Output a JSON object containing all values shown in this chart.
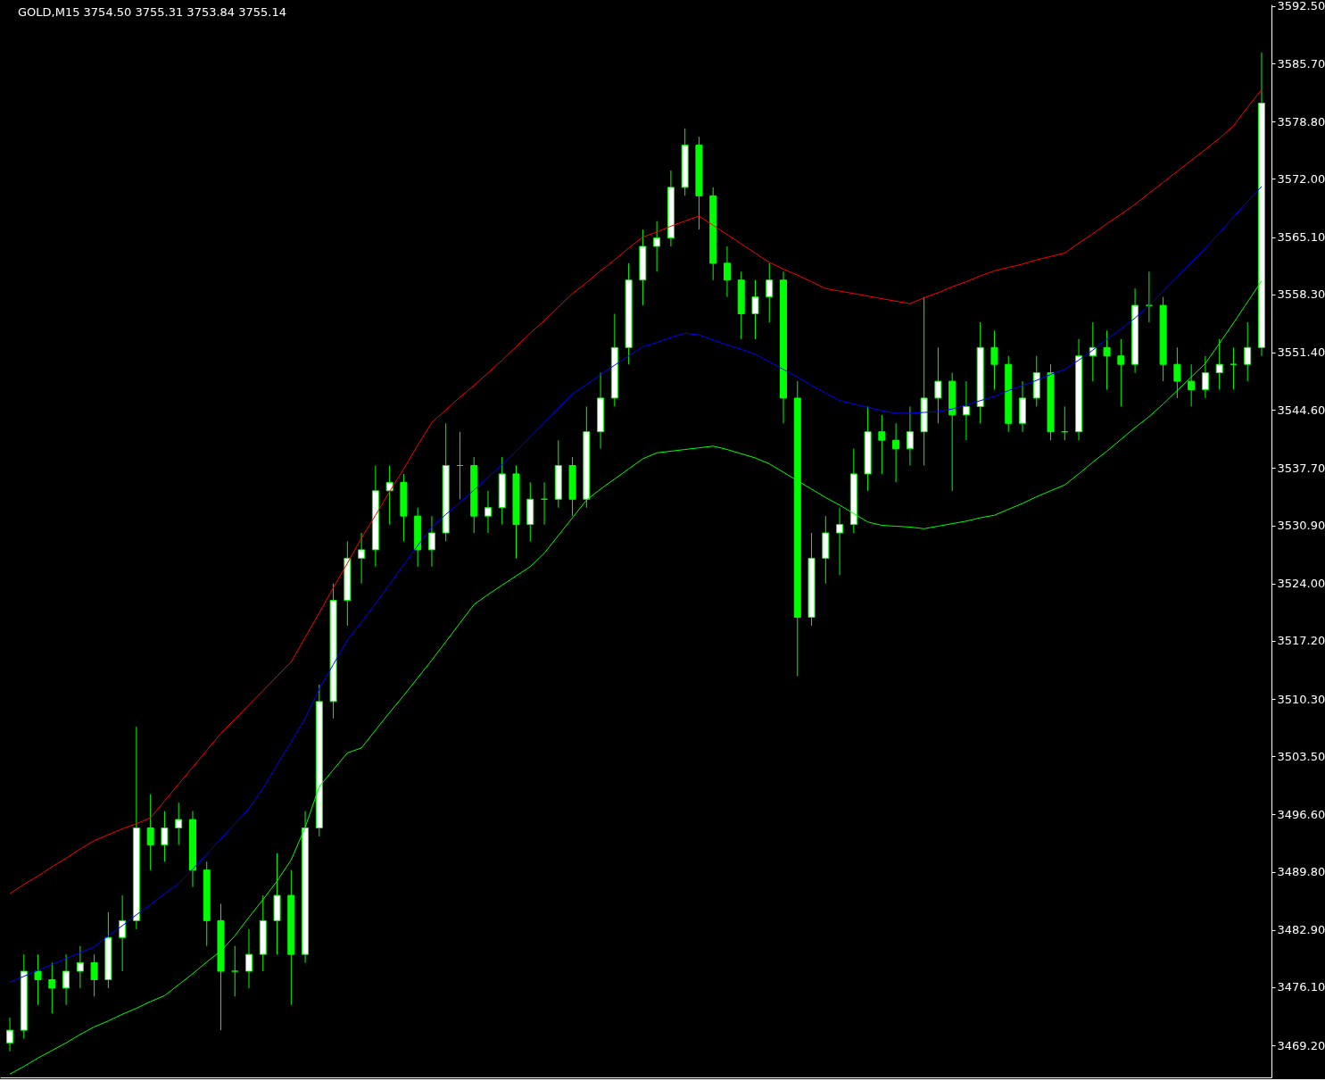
{
  "chart_data": {
    "type": "candlestick",
    "title": "GOLD,M15  3754.50 3755.31 3753.84 3755.14",
    "color": "#00ff00",
    "tick_labels": "y",
    "categories": [
      null,
      null,
      null,
      null,
      null,
      null,
      null,
      null,
      null,
      null,
      null,
      null,
      null,
      null,
      null,
      null,
      null,
      null,
      null,
      null,
      null,
      null,
      null,
      null,
      null,
      null,
      null,
      null,
      null,
      null,
      null,
      null,
      null,
      null,
      null,
      null,
      null,
      null,
      null,
      null,
      null,
      null,
      null,
      null,
      null,
      null,
      null,
      null,
      null,
      null,
      null,
      null,
      null,
      null,
      null,
      null,
      null,
      null,
      null,
      null,
      null,
      null,
      null,
      null,
      null,
      null,
      null,
      null,
      null,
      null,
      null,
      null,
      null,
      null,
      null,
      null,
      null,
      null,
      null,
      null,
      null,
      null,
      null,
      null,
      null,
      null,
      null,
      null,
      null,
      null
    ],
    "ohlc": [
      [
        3469.5,
        3472.5,
        3468.5,
        3471
      ],
      [
        3471,
        3480,
        3470,
        3478
      ],
      [
        3478,
        3480,
        3474,
        3477
      ],
      [
        3477,
        3479,
        3473,
        3476
      ],
      [
        3476,
        3480,
        3474,
        3478
      ],
      [
        3478,
        3481,
        3476,
        3479
      ],
      [
        3479,
        3480,
        3475,
        3477
      ],
      [
        3477,
        3485,
        3476,
        3482
      ],
      [
        3482,
        3487,
        3478,
        3484
      ],
      [
        3484,
        3507,
        3483,
        3495
      ],
      [
        3495,
        3499,
        3490,
        3493
      ],
      [
        3493,
        3497,
        3491,
        3495
      ],
      [
        3495,
        3498,
        3493,
        3496
      ],
      [
        3496,
        3497,
        3488,
        3490
      ],
      [
        3490,
        3491,
        3481,
        3484
      ],
      [
        3484,
        3486,
        3471,
        3478
      ],
      [
        3478,
        3481,
        3475,
        3478
      ],
      [
        3478,
        3483,
        3476,
        3480
      ],
      [
        3480,
        3487,
        3478,
        3484
      ],
      [
        3484,
        3492,
        3480,
        3487
      ],
      [
        3487,
        3490,
        3474,
        3480
      ],
      [
        3480,
        3497,
        3479,
        3495
      ],
      [
        3495,
        3512,
        3494,
        3510
      ],
      [
        3510,
        3524,
        3508,
        3522
      ],
      [
        3522,
        3529,
        3519,
        3527
      ],
      [
        3527,
        3530,
        3524,
        3528
      ],
      [
        3528,
        3538,
        3526,
        3535
      ],
      [
        3535,
        3538,
        3531,
        3536
      ],
      [
        3536,
        3537,
        3529,
        3532
      ],
      [
        3532,
        3533,
        3526,
        3528
      ],
      [
        3528,
        3532,
        3526,
        3530
      ],
      [
        3530,
        3543,
        3529,
        3538
      ],
      [
        3538,
        3542,
        3534,
        3538
      ],
      [
        3538,
        3539,
        3530,
        3532
      ],
      [
        3532,
        3535,
        3530,
        3533
      ],
      [
        3533,
        3539,
        3531,
        3537
      ],
      [
        3537,
        3538,
        3527,
        3531
      ],
      [
        3531,
        3536,
        3529,
        3534
      ],
      [
        3534,
        3536,
        3531,
        3534
      ],
      [
        3534,
        3541,
        3533,
        3538
      ],
      [
        3538,
        3539,
        3532,
        3534
      ],
      [
        3534,
        3545,
        3533,
        3542
      ],
      [
        3542,
        3549,
        3540,
        3546
      ],
      [
        3546,
        3556,
        3545,
        3552
      ],
      [
        3552,
        3562,
        3550,
        3560
      ],
      [
        3560,
        3566,
        3557,
        3564
      ],
      [
        3564,
        3567,
        3561,
        3565
      ],
      [
        3565,
        3573,
        3564,
        3571
      ],
      [
        3571,
        3578,
        3570,
        3576
      ],
      [
        3576,
        3577,
        3566,
        3570
      ],
      [
        3570,
        3571,
        3560,
        3562
      ],
      [
        3562,
        3564,
        3558,
        3560
      ],
      [
        3560,
        3561,
        3553,
        3556
      ],
      [
        3556,
        3560,
        3553,
        3558
      ],
      [
        3558,
        3562,
        3555,
        3560
      ],
      [
        3560,
        3561,
        3543,
        3546
      ],
      [
        3546,
        3548,
        3513,
        3520
      ],
      [
        3520,
        3530,
        3519,
        3527
      ],
      [
        3527,
        3532,
        3524,
        3530
      ],
      [
        3530,
        3533,
        3525,
        3531
      ],
      [
        3531,
        3540,
        3530,
        3537
      ],
      [
        3537,
        3545,
        3535,
        3542
      ],
      [
        3542,
        3544,
        3537,
        3541
      ],
      [
        3541,
        3543,
        3536,
        3540
      ],
      [
        3540,
        3545,
        3538,
        3542
      ],
      [
        3542,
        3558,
        3538,
        3546
      ],
      [
        3546,
        3552,
        3543,
        3548
      ],
      [
        3548,
        3549,
        3535,
        3544
      ],
      [
        3544,
        3548,
        3541,
        3545
      ],
      [
        3545,
        3555,
        3543,
        3552
      ],
      [
        3552,
        3554,
        3547,
        3550
      ],
      [
        3550,
        3551,
        3542,
        3543
      ],
      [
        3543,
        3548,
        3542,
        3546
      ],
      [
        3546,
        3551,
        3545,
        3549
      ],
      [
        3549,
        3550,
        3541,
        3542
      ],
      [
        3542,
        3545,
        3541,
        3542
      ],
      [
        3542,
        3553,
        3541,
        3551
      ],
      [
        3551,
        3555,
        3548,
        3552
      ],
      [
        3552,
        3554,
        3547,
        3551
      ],
      [
        3551,
        3553,
        3545,
        3550
      ],
      [
        3550,
        3559,
        3549,
        3557
      ],
      [
        3557,
        3561,
        3555,
        3557
      ],
      [
        3557,
        3558,
        3548,
        3550
      ],
      [
        3550,
        3552,
        3546,
        3548
      ],
      [
        3548,
        3550,
        3545,
        3547
      ],
      [
        3547,
        3551,
        3546,
        3549
      ],
      [
        3549,
        3553,
        3547,
        3550
      ],
      [
        3550,
        3552,
        3547,
        3550
      ],
      [
        3550,
        3555,
        3548,
        3552
      ],
      [
        3552,
        3587,
        3551,
        3581
      ]
    ],
    "series": [
      {
        "type": "line",
        "color": "#ff0000",
        "values": [
          3487.2,
          3488.3,
          3489.3,
          3490.4,
          3491.4,
          3492.5,
          3493.5,
          3494.2,
          3494.9,
          3495.5,
          3496.2,
          3498.2,
          3500.2,
          3502.2,
          3504.2,
          3506.2,
          3507.9,
          3509.6,
          3511.3,
          3513.0,
          3514.7,
          3517.6,
          3520.5,
          3523.5,
          3526.4,
          3529.4,
          3532.1,
          3534.9,
          3537.6,
          3540.4,
          3543.1,
          3544.6,
          3546.1,
          3547.5,
          3549.0,
          3550.5,
          3552.1,
          3553.7,
          3555.2,
          3556.8,
          3558.4,
          3559.7,
          3561.1,
          3562.4,
          3563.8,
          3565.1,
          3565.7,
          3566.4,
          3567.0,
          3567.6,
          3566.5,
          3565.4,
          3564.3,
          3563.2,
          3562.1,
          3561.3,
          3560.6,
          3559.8,
          3559.0,
          3558.7,
          3558.4,
          3558.1,
          3557.8,
          3557.5,
          3557.2,
          3557.9,
          3558.5,
          3559.2,
          3559.8,
          3560.5,
          3561.1,
          3561.5,
          3561.9,
          3562.4,
          3562.8,
          3563.2,
          3564.4,
          3565.5,
          3566.7,
          3567.8,
          3569.0,
          3570.3,
          3571.6,
          3572.9,
          3574.2,
          3575.5,
          3576.8,
          3578.3,
          3580.5,
          3582.6
        ]
      },
      {
        "type": "line",
        "color": "#0000ff",
        "values": [
          3476.7,
          3477.4,
          3478.1,
          3478.8,
          3479.5,
          3480.2,
          3480.9,
          3482.2,
          3483.4,
          3484.7,
          3485.9,
          3487.2,
          3488.4,
          3490.1,
          3491.9,
          3493.7,
          3495.5,
          3497.3,
          3499.7,
          3502.5,
          3505.2,
          3508.0,
          3511.5,
          3514.4,
          3517.3,
          3519.4,
          3521.6,
          3523.9,
          3526.2,
          3528.5,
          3530.7,
          3532.2,
          3533.6,
          3535.1,
          3536.6,
          3538.1,
          3539.7,
          3541.4,
          3543.1,
          3544.8,
          3546.5,
          3547.6,
          3548.8,
          3549.9,
          3551.0,
          3552.1,
          3552.6,
          3553.2,
          3553.7,
          3553.5,
          3552.9,
          3552.3,
          3551.8,
          3551.2,
          3550.3,
          3549.4,
          3548.5,
          3547.5,
          3546.6,
          3545.7,
          3545.3,
          3544.9,
          3544.5,
          3544.2,
          3544.2,
          3544.3,
          3544.4,
          3544.7,
          3545.2,
          3545.7,
          3546.2,
          3546.9,
          3547.5,
          3548.1,
          3548.8,
          3549.4,
          3550.5,
          3551.7,
          3553.0,
          3554.2,
          3555.5,
          3557.0,
          3558.7,
          3560.4,
          3562.1,
          3563.8,
          3565.6,
          3567.5,
          3569.3,
          3571.1
        ]
      },
      {
        "type": "line",
        "color": "#00ff00",
        "values": [
          3465.8,
          3466.7,
          3467.7,
          3468.6,
          3469.5,
          3470.5,
          3471.4,
          3472.1,
          3472.9,
          3473.6,
          3474.4,
          3475.1,
          3476.4,
          3477.7,
          3479.1,
          3480.4,
          3482.2,
          3484.4,
          3486.5,
          3488.7,
          3491.2,
          3495.1,
          3499.9,
          3501.9,
          3503.9,
          3504.5,
          3506.6,
          3508.7,
          3510.7,
          3512.8,
          3514.9,
          3517.1,
          3519.3,
          3521.5,
          3522.7,
          3523.8,
          3524.9,
          3526.0,
          3527.6,
          3529.7,
          3531.8,
          3533.9,
          3535.2,
          3536.4,
          3537.6,
          3538.8,
          3539.5,
          3539.7,
          3539.9,
          3540.1,
          3540.3,
          3539.9,
          3539.4,
          3538.9,
          3538.2,
          3537.2,
          3536.2,
          3535.2,
          3534.2,
          3533.3,
          3532.3,
          3531.3,
          3530.9,
          3530.8,
          3530.7,
          3530.5,
          3530.8,
          3531.1,
          3531.4,
          3531.8,
          3532.1,
          3532.8,
          3533.5,
          3534.3,
          3535.0,
          3535.7,
          3537.0,
          3538.4,
          3539.7,
          3541.1,
          3542.5,
          3543.8,
          3545.3,
          3546.9,
          3548.5,
          3550.1,
          3552.5,
          3554.9,
          3557.4,
          3559.9
        ]
      }
    ],
    "ylim": [
      3465.4,
      3592.7
    ],
    "yticks": [
      {
        "value": 3469.2,
        "label": "3469.20"
      },
      {
        "value": 3476.1,
        "label": "3476.10"
      },
      {
        "value": 3482.9,
        "label": "3482.90"
      },
      {
        "value": 3489.8,
        "label": "3489.80"
      },
      {
        "value": 3496.6,
        "label": "3496.60"
      },
      {
        "value": 3503.5,
        "label": "3503.50"
      },
      {
        "value": 3510.3,
        "label": "3510.30"
      },
      {
        "value": 3517.2,
        "label": "3517.20"
      },
      {
        "value": 3524.0,
        "label": "3524.00"
      },
      {
        "value": 3530.9,
        "label": "3530.90"
      },
      {
        "value": 3537.7,
        "label": "3537.70"
      },
      {
        "value": 3544.6,
        "label": "3544.60"
      },
      {
        "value": 3551.4,
        "label": "3551.40"
      },
      {
        "value": 3558.3,
        "label": "3558.30"
      },
      {
        "value": 3565.1,
        "label": "3565.10"
      },
      {
        "value": 3572.0,
        "label": "3572.00"
      },
      {
        "value": 3578.8,
        "label": "3578.80"
      },
      {
        "value": 3585.7,
        "label": "3585.70"
      },
      {
        "value": 3592.5,
        "label": "3592.50"
      }
    ]
  }
}
